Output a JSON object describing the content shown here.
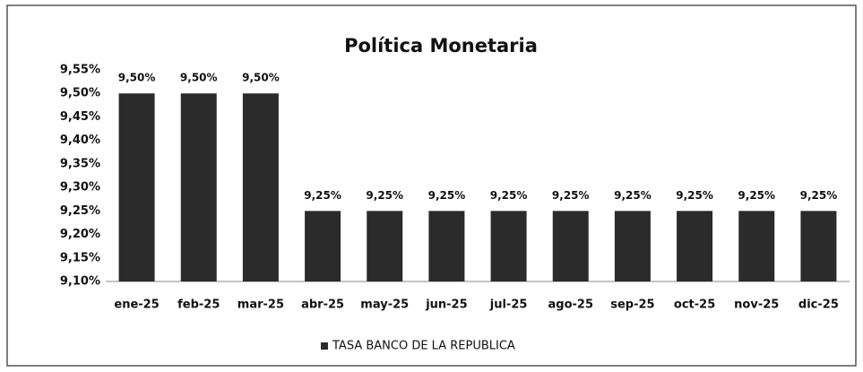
{
  "chart_data": {
    "type": "bar",
    "title": "Política Monetaria",
    "categories": [
      "ene-25",
      "feb-25",
      "mar-25",
      "abr-25",
      "may-25",
      "jun-25",
      "jul-25",
      "ago-25",
      "sep-25",
      "oct-25",
      "nov-25",
      "dic-25"
    ],
    "series": [
      {
        "name": "TASA BANCO DE LA REPUBLICA",
        "color": "#2b2b2b",
        "values": [
          9.5,
          9.5,
          9.5,
          9.25,
          9.25,
          9.25,
          9.25,
          9.25,
          9.25,
          9.25,
          9.25,
          9.25
        ],
        "value_labels": [
          "9,50%",
          "9,50%",
          "9,50%",
          "9,25%",
          "9,25%",
          "9,25%",
          "9,25%",
          "9,25%",
          "9,25%",
          "9,25%",
          "9,25%",
          "9,25%"
        ]
      }
    ],
    "ylim": [
      9.1,
      9.55
    ],
    "yticks": [
      {
        "value": 9.1,
        "label": "9,10%"
      },
      {
        "value": 9.15,
        "label": "9,15%"
      },
      {
        "value": 9.2,
        "label": "9,20%"
      },
      {
        "value": 9.25,
        "label": "9,25%"
      },
      {
        "value": 9.3,
        "label": "9,30%"
      },
      {
        "value": 9.35,
        "label": "9,35%"
      },
      {
        "value": 9.4,
        "label": "9,40%"
      },
      {
        "value": 9.45,
        "label": "9,45%"
      },
      {
        "value": 9.5,
        "label": "9,50%"
      },
      {
        "value": 9.55,
        "label": "9,55%"
      }
    ],
    "grid": false,
    "legend": "bottom"
  }
}
